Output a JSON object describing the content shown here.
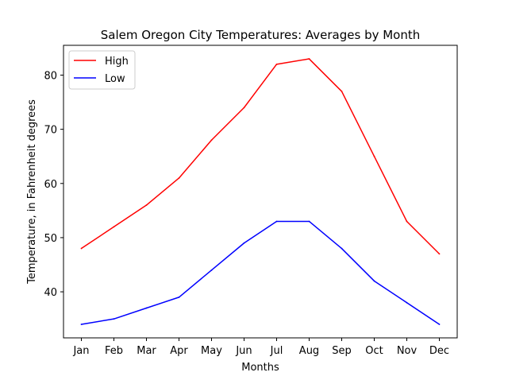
{
  "chart_data": {
    "type": "line",
    "title": "Salem Oregon City Temperatures: Averages by Month",
    "xlabel": "Months",
    "ylabel": "Temperature, in Fahrenheit degrees",
    "categories": [
      "Jan",
      "Feb",
      "Mar",
      "Apr",
      "May",
      "Jun",
      "Jul",
      "Aug",
      "Sep",
      "Oct",
      "Nov",
      "Dec"
    ],
    "ylim": [
      31.5,
      85.5
    ],
    "yticks": [
      40,
      50,
      60,
      70,
      80
    ],
    "grid": false,
    "legend_position": "top-left",
    "series": [
      {
        "name": "High",
        "color": "#ff0000",
        "values": [
          48,
          52,
          56,
          61,
          68,
          74,
          82,
          83,
          77,
          65,
          53,
          47
        ]
      },
      {
        "name": "Low",
        "color": "#0000ff",
        "values": [
          34,
          35,
          37,
          39,
          44,
          49,
          53,
          53,
          48,
          42,
          38,
          34
        ]
      }
    ]
  }
}
